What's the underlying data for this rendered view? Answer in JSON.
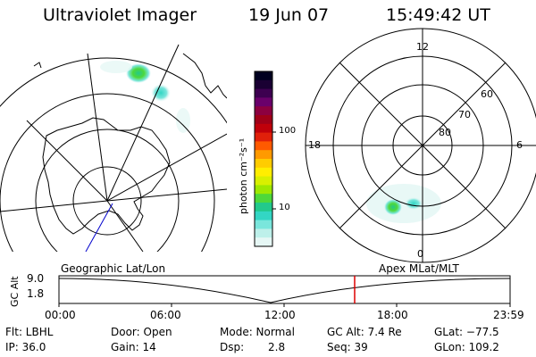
{
  "header": {
    "instrument": "Ultraviolet Imager",
    "date": "19 Jun 07",
    "time": "15:49:42 UT"
  },
  "colorbar": {
    "label": "photon cm⁻²s⁻¹",
    "ticks": [
      "100",
      "10"
    ],
    "colors": [
      "#000020",
      "#1a0033",
      "#3d0050",
      "#6a006b",
      "#8c0040",
      "#a00018",
      "#c0000a",
      "#e0200a",
      "#ff5a00",
      "#ff9a00",
      "#ffcc00",
      "#ffee00",
      "#d8f000",
      "#9ee800",
      "#4dd83a",
      "#22c98b",
      "#33d6c4",
      "#7ae6dc",
      "#bdf0ea",
      "#e6f7f5"
    ]
  },
  "mlt_dial": {
    "hour_labels": [
      "12",
      "18",
      "6",
      "0"
    ],
    "lat_labels": [
      "60",
      "70",
      "80"
    ]
  },
  "timeline": {
    "left_label": "Geographic Lat/Lon",
    "right_label": "Apex  MLat/MLT",
    "y_axis_label": "GC Alt",
    "y_ticks": [
      "9.0",
      "1.8"
    ],
    "x_ticks": [
      "00:00",
      "06:00",
      "12:00",
      "18:00",
      "23:59"
    ],
    "marker_color": "#dd0000"
  },
  "footer": {
    "flt": "Flt: LBHL",
    "ip": "IP: 36.0",
    "door": "Door: Open",
    "gain": "Gain: 14",
    "mode": "Mode: Normal",
    "dsp_label": "Dsp:",
    "dsp_value": "2.8",
    "gc_alt": "GC Alt: 7.4 Re",
    "seq": "Seq: 39",
    "glat": "GLat: −77.5",
    "glon": "GLon: 109.2"
  }
}
